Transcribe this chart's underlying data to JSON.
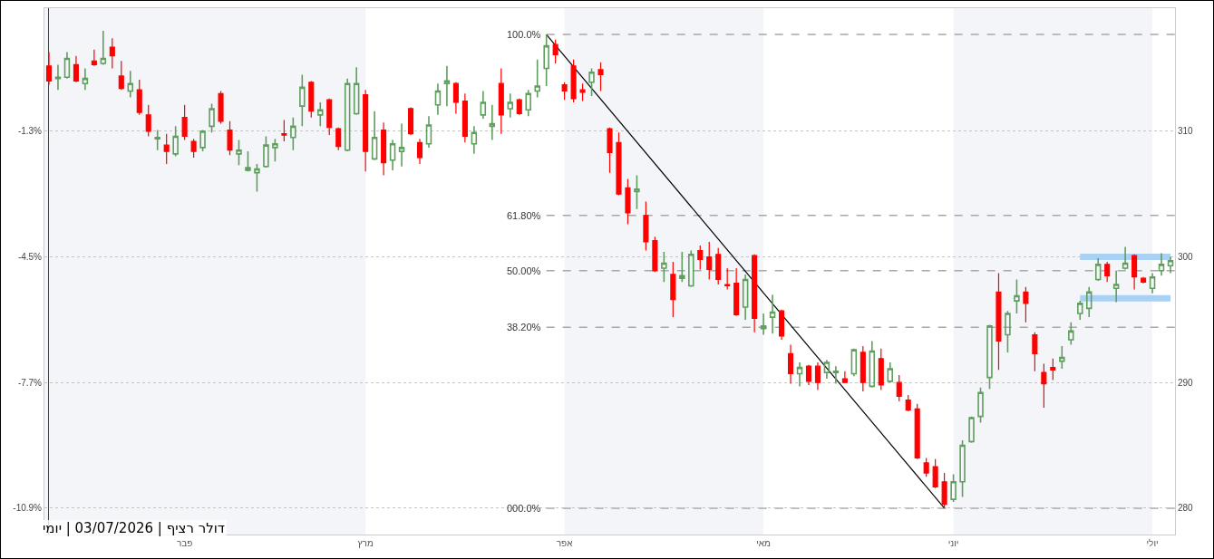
{
  "chart_data": {
    "type": "candlestick",
    "categories": [
      null,
      null,
      null,
      null,
      null,
      null,
      null,
      null,
      null,
      null,
      null,
      null,
      null,
      null,
      null,
      "פבר",
      null,
      null,
      null,
      null,
      null,
      null,
      null,
      null,
      null,
      null,
      null,
      null,
      null,
      null,
      null,
      null,
      null,
      null,
      null,
      "מרץ",
      null,
      null,
      null,
      null,
      null,
      null,
      null,
      null,
      null,
      null,
      null,
      null,
      null,
      null,
      null,
      null,
      null,
      null,
      null,
      null,
      null,
      "אפר",
      null,
      null,
      null,
      null,
      null,
      null,
      null,
      null,
      null,
      null,
      null,
      null,
      null,
      null,
      null,
      null,
      null,
      null,
      null,
      null,
      null,
      "מאי",
      null,
      null,
      null,
      null,
      null,
      null,
      null,
      null,
      null,
      null,
      null,
      null,
      null,
      null,
      null,
      null,
      null,
      null,
      null,
      null,
      "יוני",
      null,
      null,
      null,
      null,
      null,
      null,
      null,
      null,
      null,
      null,
      null,
      null,
      null,
      null,
      null,
      null,
      null,
      null,
      null,
      null,
      null,
      "יולי",
      null,
      null
    ],
    "ohlc": [
      [
        315.2,
        316.3,
        313.7,
        314.0
      ],
      [
        314.2,
        315.3,
        313.3,
        314.3
      ],
      [
        314.3,
        316.3,
        314.2,
        315.8
      ],
      [
        315.3,
        316.0,
        313.9,
        314.0
      ],
      [
        313.8,
        315.0,
        313.3,
        314.2
      ],
      [
        315.6,
        316.5,
        315.2,
        315.3
      ],
      [
        315.4,
        318.0,
        315.3,
        315.8
      ],
      [
        316.7,
        317.4,
        315.0,
        316.0
      ],
      [
        314.4,
        315.6,
        313.3,
        313.4
      ],
      [
        313.2,
        314.8,
        312.7,
        313.8
      ],
      [
        313.3,
        314.1,
        311.3,
        311.5
      ],
      [
        311.3,
        312.1,
        309.6,
        310.0
      ],
      [
        309.4,
        310.1,
        308.5,
        309.5
      ],
      [
        308.9,
        309.8,
        307.4,
        308.4
      ],
      [
        308.2,
        310.4,
        308.0,
        309.6
      ],
      [
        311.1,
        312.1,
        309.3,
        309.6
      ],
      [
        309.2,
        309.4,
        307.9,
        308.4
      ],
      [
        308.7,
        310.1,
        308.4,
        310.0
      ],
      [
        310.4,
        312.2,
        309.9,
        311.8
      ],
      [
        313.0,
        313.2,
        310.6,
        310.8
      ],
      [
        310.1,
        310.8,
        308.1,
        308.5
      ],
      [
        308.2,
        309.3,
        307.3,
        308.5
      ],
      [
        306.9,
        308.4,
        306.8,
        307.1
      ],
      [
        306.7,
        307.4,
        305.2,
        307.0
      ],
      [
        307.2,
        309.6,
        307.1,
        308.9
      ],
      [
        308.7,
        309.4,
        307.6,
        309.0
      ],
      [
        309.8,
        310.9,
        309.2,
        309.7
      ],
      [
        309.5,
        311.1,
        308.5,
        310.4
      ],
      [
        312.0,
        314.5,
        310.4,
        313.5
      ],
      [
        313.9,
        314.0,
        311.1,
        311.6
      ],
      [
        311.3,
        312.3,
        310.4,
        311.7
      ],
      [
        312.5,
        312.6,
        309.7,
        310.3
      ],
      [
        310.2,
        310.3,
        308.5,
        308.8
      ],
      [
        308.5,
        314.2,
        308.4,
        313.8
      ],
      [
        311.4,
        315.1,
        311.3,
        313.8
      ],
      [
        312.9,
        313.3,
        306.8,
        308.4
      ],
      [
        307.8,
        311.6,
        307.7,
        309.5
      ],
      [
        310.1,
        310.7,
        306.5,
        307.5
      ],
      [
        307.7,
        309.3,
        306.9,
        309.0
      ],
      [
        308.4,
        310.6,
        307.2,
        308.7
      ],
      [
        311.8,
        311.9,
        309.7,
        309.8
      ],
      [
        309.1,
        309.4,
        307.4,
        307.9
      ],
      [
        309.0,
        311.2,
        308.7,
        310.5
      ],
      [
        312.1,
        313.8,
        311.3,
        313.2
      ],
      [
        313.8,
        315.2,
        312.0,
        314.0
      ],
      [
        313.8,
        313.9,
        311.4,
        312.3
      ],
      [
        312.4,
        313.0,
        309.1,
        309.6
      ],
      [
        309.0,
        310.4,
        308.2,
        309.9
      ],
      [
        311.3,
        313.2,
        311.0,
        312.3
      ],
      [
        310.4,
        312.1,
        309.3,
        310.6
      ],
      [
        313.8,
        315.0,
        309.8,
        311.3
      ],
      [
        311.8,
        313.0,
        311.1,
        312.3
      ],
      [
        312.5,
        312.6,
        311.3,
        311.4
      ],
      [
        311.7,
        313.3,
        311.2,
        313.0
      ],
      [
        313.2,
        315.7,
        312.7,
        313.6
      ],
      [
        315.0,
        317.7,
        313.6,
        316.8
      ],
      [
        316.9,
        317.3,
        315.4,
        316.1
      ],
      [
        313.7,
        313.9,
        312.5,
        313.2
      ],
      [
        315.2,
        315.7,
        312.3,
        312.6
      ],
      [
        313.3,
        313.8,
        312.4,
        313.1
      ],
      [
        313.9,
        315.0,
        312.8,
        314.7
      ],
      [
        314.9,
        315.5,
        313.2,
        314.5
      ],
      [
        310.2,
        310.3,
        306.7,
        308.3
      ],
      [
        309.1,
        309.9,
        304.9,
        305.0
      ],
      [
        305.5,
        306.2,
        302.6,
        303.5
      ],
      [
        305.2,
        306.5,
        303.8,
        305.4
      ],
      [
        303.3,
        304.4,
        300.5,
        301.2
      ],
      [
        301.3,
        301.6,
        298.8,
        298.9
      ],
      [
        299.1,
        300.4,
        298.0,
        299.5
      ],
      [
        298.6,
        299.6,
        295.2,
        296.6
      ],
      [
        298.3,
        300.4,
        298.0,
        298.5
      ],
      [
        297.7,
        300.5,
        297.6,
        300.2
      ],
      [
        300.5,
        300.9,
        299.0,
        299.8
      ],
      [
        300.0,
        301.2,
        298.2,
        299.0
      ],
      [
        300.2,
        300.7,
        297.8,
        298.2
      ],
      [
        297.8,
        299.1,
        297.4,
        297.7
      ],
      [
        297.9,
        299.1,
        295.3,
        295.4
      ],
      [
        296.0,
        298.6,
        295.0,
        298.2
      ],
      [
        300.1,
        300.2,
        294.0,
        295.1
      ],
      [
        294.3,
        295.5,
        293.8,
        294.5
      ],
      [
        295.2,
        297.0,
        293.9,
        295.6
      ],
      [
        295.7,
        295.8,
        293.4,
        293.7
      ],
      [
        292.3,
        293.0,
        289.9,
        290.7
      ],
      [
        290.7,
        291.6,
        289.7,
        291.2
      ],
      [
        291.3,
        291.4,
        289.8,
        290.1
      ],
      [
        291.3,
        291.6,
        289.4,
        290.0
      ],
      [
        290.8,
        291.8,
        290.3,
        291.6
      ],
      [
        290.8,
        291.3,
        289.9,
        290.9
      ],
      [
        290.3,
        290.9,
        290.0,
        290.0
      ],
      [
        290.7,
        292.7,
        290.5,
        292.6
      ],
      [
        292.4,
        292.9,
        289.3,
        290.0
      ],
      [
        289.7,
        293.3,
        289.6,
        292.5
      ],
      [
        291.9,
        292.7,
        289.4,
        289.8
      ],
      [
        290.1,
        291.6,
        290.0,
        291.1
      ],
      [
        290.0,
        290.6,
        288.5,
        288.9
      ],
      [
        288.6,
        289.0,
        287.7,
        287.8
      ],
      [
        287.9,
        288.3,
        283.9,
        284.0
      ],
      [
        283.6,
        284.0,
        282.5,
        282.8
      ],
      [
        283.3,
        283.9,
        281.6,
        281.7
      ],
      [
        282.1,
        282.8,
        280.0,
        280.3
      ],
      [
        280.7,
        282.7,
        280.5,
        282.1
      ],
      [
        282.1,
        285.4,
        280.9,
        285.0
      ],
      [
        285.3,
        287.3,
        285.2,
        287.2
      ],
      [
        287.3,
        289.6,
        286.8,
        289.2
      ],
      [
        290.4,
        294.6,
        289.5,
        294.5
      ],
      [
        297.2,
        298.7,
        291.0,
        293.3
      ],
      [
        293.8,
        295.7,
        292.4,
        295.5
      ],
      [
        296.5,
        298.2,
        295.5,
        296.9
      ],
      [
        297.2,
        297.6,
        294.8,
        296.3
      ],
      [
        293.8,
        294.0,
        290.9,
        292.3
      ],
      [
        290.8,
        291.5,
        288.0,
        289.9
      ],
      [
        291.2,
        291.9,
        290.2,
        291.0
      ],
      [
        291.7,
        292.9,
        291.1,
        292.0
      ],
      [
        293.4,
        294.8,
        293.0,
        294.1
      ],
      [
        295.5,
        296.5,
        295.0,
        296.3
      ],
      [
        295.9,
        297.6,
        295.2,
        297.2
      ],
      [
        298.2,
        299.9,
        298.1,
        299.4
      ],
      [
        299.4,
        299.6,
        298.0,
        298.5
      ],
      [
        297.5,
        298.9,
        296.4,
        297.8
      ],
      [
        299.1,
        300.8,
        299.0,
        299.5
      ],
      [
        300.1,
        300.2,
        297.4,
        298.4
      ],
      [
        298.3,
        298.4,
        297.9,
        298.0
      ],
      [
        297.5,
        298.7,
        297.1,
        298.4
      ],
      [
        298.9,
        300.3,
        298.5,
        299.4
      ],
      [
        299.3,
        300.0,
        298.7,
        299.7
      ]
    ],
    "series": [
      {
        "type": "line",
        "color": "#000000",
        "values": [
          null,
          null,
          null,
          null,
          null,
          null,
          null,
          null,
          null,
          null,
          null,
          null,
          null,
          null,
          null,
          null,
          null,
          null,
          null,
          null,
          null,
          null,
          null,
          null,
          null,
          null,
          null,
          null,
          null,
          null,
          null,
          null,
          null,
          null,
          null,
          null,
          null,
          null,
          null,
          null,
          null,
          null,
          null,
          null,
          null,
          null,
          null,
          null,
          null,
          null,
          null,
          null,
          null,
          null,
          null,
          317.7,
          null,
          null,
          null,
          null,
          null,
          null,
          null,
          null,
          null,
          null,
          null,
          null,
          null,
          null,
          null,
          null,
          null,
          null,
          null,
          null,
          null,
          null,
          null,
          null,
          null,
          null,
          null,
          null,
          null,
          null,
          null,
          null,
          null,
          null,
          null,
          null,
          null,
          null,
          null,
          null,
          null,
          null,
          null,
          280.0,
          null,
          null,
          null,
          null,
          null,
          null,
          null,
          null,
          null,
          null,
          null,
          null,
          null,
          null,
          null,
          null,
          null,
          null,
          null,
          null,
          null,
          null,
          null,
          null,
          null
        ]
      },
      {
        "type": "line",
        "color": "#a9d1f3",
        "values": [
          null,
          null,
          null,
          null,
          null,
          null,
          null,
          null,
          null,
          null,
          null,
          null,
          null,
          null,
          null,
          null,
          null,
          null,
          null,
          null,
          null,
          null,
          null,
          null,
          null,
          null,
          null,
          null,
          null,
          null,
          null,
          null,
          null,
          null,
          null,
          null,
          null,
          null,
          null,
          null,
          null,
          null,
          null,
          null,
          null,
          null,
          null,
          null,
          null,
          null,
          null,
          null,
          null,
          null,
          null,
          null,
          null,
          null,
          null,
          null,
          null,
          null,
          null,
          null,
          null,
          null,
          null,
          null,
          null,
          null,
          null,
          null,
          null,
          null,
          null,
          null,
          null,
          null,
          null,
          null,
          null,
          null,
          null,
          null,
          null,
          null,
          null,
          null,
          null,
          null,
          null,
          null,
          null,
          null,
          null,
          null,
          null,
          null,
          null,
          null,
          null,
          null,
          null,
          null,
          null,
          null,
          null,
          null,
          null,
          null,
          null,
          null,
          null,
          null,
          300.0,
          300.0,
          300.0,
          300.0,
          300.0,
          300.0,
          300.0,
          300.0,
          300.0,
          300.0,
          300.0
        ]
      },
      {
        "type": "line",
        "color": "#a9d1f3",
        "values": [
          null,
          null,
          null,
          null,
          null,
          null,
          null,
          null,
          null,
          null,
          null,
          null,
          null,
          null,
          null,
          null,
          null,
          null,
          null,
          null,
          null,
          null,
          null,
          null,
          null,
          null,
          null,
          null,
          null,
          null,
          null,
          null,
          null,
          null,
          null,
          null,
          null,
          null,
          null,
          null,
          null,
          null,
          null,
          null,
          null,
          null,
          null,
          null,
          null,
          null,
          null,
          null,
          null,
          null,
          null,
          null,
          null,
          null,
          null,
          null,
          null,
          null,
          null,
          null,
          null,
          null,
          null,
          null,
          null,
          null,
          null,
          null,
          null,
          null,
          null,
          null,
          null,
          null,
          null,
          null,
          null,
          null,
          null,
          null,
          null,
          null,
          null,
          null,
          null,
          null,
          null,
          null,
          null,
          null,
          null,
          null,
          null,
          null,
          null,
          null,
          null,
          null,
          null,
          null,
          null,
          null,
          null,
          null,
          null,
          null,
          null,
          null,
          null,
          null,
          296.7,
          296.7,
          296.7,
          296.7,
          296.7,
          296.7,
          296.7,
          296.7,
          296.7,
          296.7,
          296.7
        ]
      }
    ],
    "ylim": [
      277.9,
      319.8
    ],
    "yticks": [
      280,
      290,
      300,
      310
    ],
    "y2lim": [
      -11.572,
      1.836
    ],
    "y2ticks": [
      {
        "value": -1.3,
        "label": "-1.3%"
      },
      {
        "value": -4.5,
        "label": "-4.5%"
      },
      {
        "value": -7.7,
        "label": "-7.7%"
      },
      {
        "value": -10.9,
        "label": "-10.9%"
      }
    ],
    "grid": "y",
    "ref_lines": [
      {
        "axis": "y",
        "value": 317.7,
        "color": "#a8a8a8",
        "line_style": "dashed"
      },
      {
        "axis": "y",
        "value": 303.3,
        "color": "#a8a8a8",
        "line_style": "dashed"
      },
      {
        "axis": "y",
        "value": 298.9,
        "color": "#a8a8a8",
        "line_style": "dashed"
      },
      {
        "axis": "y",
        "value": 294.4,
        "color": "#a8a8a8",
        "line_style": "dashed"
      },
      {
        "axis": "y",
        "value": 280.0,
        "color": "#a8a8a8",
        "line_style": "dashed"
      }
    ],
    "annotations": [
      "100.0%",
      "61.80%",
      "50.00%",
      "38.20%",
      "000.0%",
      "דולר רציף | 03/07/2026 | יומי"
    ]
  }
}
